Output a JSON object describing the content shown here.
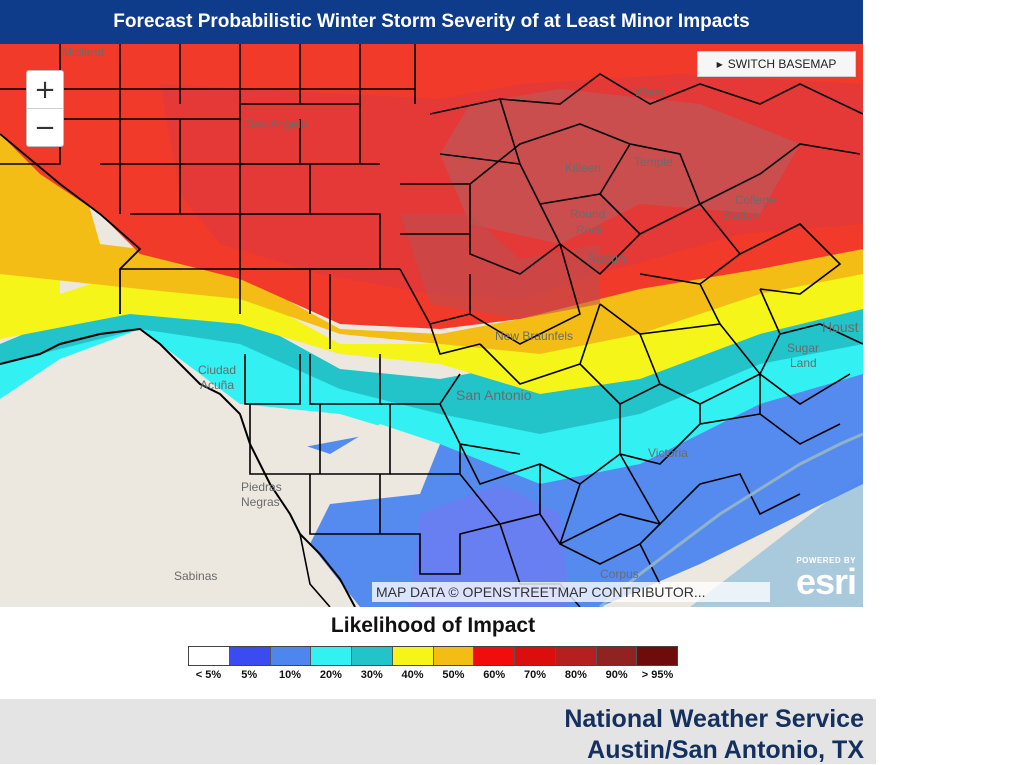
{
  "title": "Forecast Probabilistic Winter Storm Severity of at Least Minor Impacts",
  "map": {
    "zoom_in_label": "+",
    "zoom_out_label": "−",
    "switch_basemap_label": "SWITCH BASEMAP",
    "attribution": "MAP DATA © OPENSTREETMAP CONTRIBUTOR...",
    "esri_powered": "POWERED BY",
    "esri_logo": "esri",
    "cities": {
      "midland": "Midland",
      "san_angelo": "San Angelo",
      "waco": "Waco",
      "killeen": "Killeen",
      "temple": "Temple",
      "round_rock_1": "Round",
      "round_rock_2": "Rock",
      "college_station_1": "College",
      "college_station_2": "Station",
      "austin": "Austin",
      "new_braunfels": "New Braunfels",
      "houston": "Houst",
      "sugar_land_1": "Sugar",
      "sugar_land_2": "Land",
      "ciudad_acuna_1": "Ciudad",
      "ciudad_acuna_2": "Acuña",
      "san_antonio": "San Antonio",
      "victoria": "Victoria",
      "piedras_negras_1": "Piedras",
      "piedras_negras_2": "Negras",
      "sabinas": "Sabinas",
      "corpus": "Corpus"
    }
  },
  "legend": {
    "title": "Likelihood of Impact",
    "bins": [
      {
        "label": "< 5%",
        "color": "#ffffff"
      },
      {
        "label": "5%",
        "color": "#3b4bf2"
      },
      {
        "label": "10%",
        "color": "#4d86ef"
      },
      {
        "label": "20%",
        "color": "#33f0f2"
      },
      {
        "label": "30%",
        "color": "#22c3c9"
      },
      {
        "label": "40%",
        "color": "#f5f51a"
      },
      {
        "label": "50%",
        "color": "#f3bd16"
      },
      {
        "label": "60%",
        "color": "#f20d0d"
      },
      {
        "label": "70%",
        "color": "#dc0d0d"
      },
      {
        "label": "80%",
        "color": "#b51f1f"
      },
      {
        "label": "90%",
        "color": "#912222"
      },
      {
        "label": "> 95%",
        "color": "#6e0b0b"
      }
    ]
  },
  "footer": {
    "line1": "National Weather Service",
    "line2": "Austin/San Antonio, TX"
  }
}
